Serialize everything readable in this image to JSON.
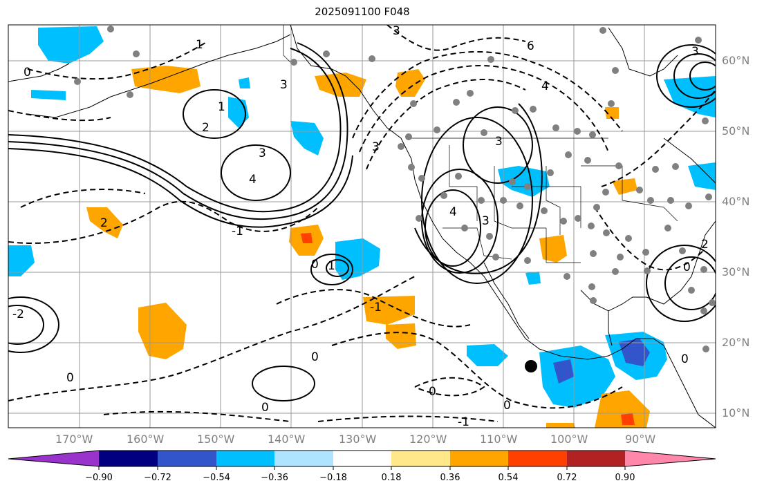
{
  "title": "2025091100 F048",
  "lon_ticks": [
    "170°W",
    "160°W",
    "150°W",
    "140°W",
    "130°W",
    "120°W",
    "110°W",
    "100°W",
    "90°W"
  ],
  "lat_ticks": [
    "60°N",
    "50°N",
    "40°N",
    "30°N",
    "20°N",
    "10°N"
  ],
  "contour_labels": [
    "0",
    "1",
    "2",
    "3",
    "4",
    "-1",
    "-2",
    "6"
  ],
  "colorbar": {
    "colors": [
      "#9933cc",
      "#000080",
      "#3355cc",
      "#00bfff",
      "#aee4ff",
      "#ffffff",
      "#ffe88a",
      "#ffa500",
      "#ff4000",
      "#b22222",
      "#ff88aa"
    ],
    "labels": [
      "−0.90",
      "−0.72",
      "−0.54",
      "−0.36",
      "−0.18",
      "0.18",
      "0.36",
      "0.54",
      "0.72",
      "0.90"
    ]
  },
  "colors": {
    "grid": "#999999",
    "tick_text": "#808080",
    "land_outline": "#000000",
    "station_dot": "#808080"
  }
}
